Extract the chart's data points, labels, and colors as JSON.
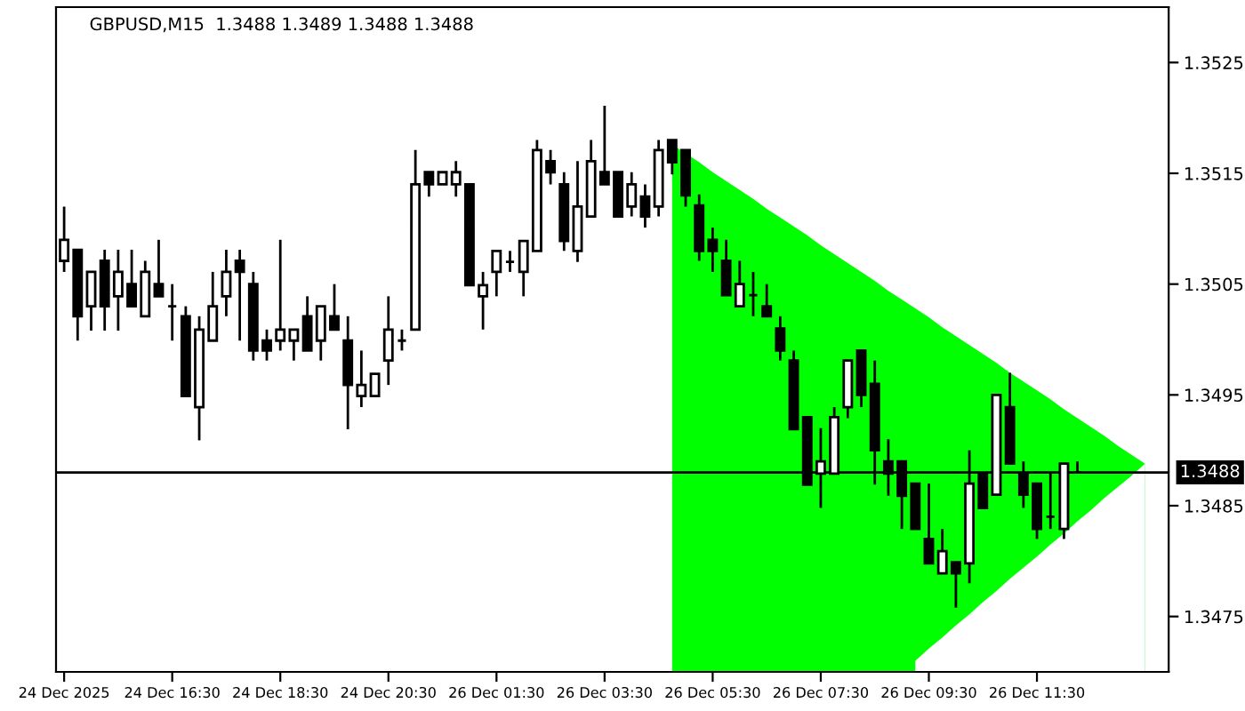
{
  "chart_data": {
    "type": "candlestick",
    "title": "GBPUSD,M15  1.3488 1.3489 1.3488 1.3488",
    "categories": [
      "24 Dec 2025",
      null,
      null,
      null,
      null,
      null,
      null,
      null,
      "24 Dec 16:30",
      null,
      null,
      null,
      null,
      null,
      null,
      null,
      "24 Dec 18:30",
      null,
      null,
      null,
      null,
      null,
      null,
      null,
      "24 Dec 20:30",
      null,
      null,
      null,
      null,
      null,
      null,
      null,
      "26 Dec 01:30",
      null,
      null,
      null,
      null,
      null,
      null,
      null,
      "26 Dec 03:30",
      null,
      null,
      null,
      null,
      null,
      null,
      null,
      "26 Dec 05:30",
      null,
      null,
      null,
      null,
      null,
      null,
      null,
      "26 Dec 07:30",
      null,
      null,
      null,
      null,
      null,
      null,
      null,
      "26 Dec 09:30",
      null,
      null,
      null,
      null,
      null,
      null,
      null,
      "26 Dec 11:30",
      null,
      null,
      null,
      null,
      null,
      null,
      null,
      null
    ],
    "ohlc": [
      [
        1.35071,
        1.3512,
        1.35061,
        1.3509
      ],
      [
        1.35081,
        1.35081,
        1.34999,
        1.35021
      ],
      [
        1.3503,
        1.35061,
        1.35008,
        1.35061
      ],
      [
        1.35071,
        1.35081,
        1.35008,
        1.3503
      ],
      [
        1.35039,
        1.35081,
        1.35008,
        1.35061
      ],
      [
        1.3505,
        1.35081,
        1.3503,
        1.3503
      ],
      [
        1.35021,
        1.35071,
        1.35021,
        1.35061
      ],
      [
        1.3505,
        1.3509,
        1.35039,
        1.35039
      ],
      [
        1.3503,
        1.3505,
        1.34999,
        1.3503
      ],
      [
        1.35021,
        1.3503,
        1.34949,
        1.34949
      ],
      [
        1.34939,
        1.35021,
        1.34909,
        1.35009
      ],
      [
        1.34999,
        1.35061,
        1.34999,
        1.3503
      ],
      [
        1.35039,
        1.35081,
        1.35021,
        1.35061
      ],
      [
        1.35071,
        1.35081,
        1.34999,
        1.35061
      ],
      [
        1.3505,
        1.35061,
        1.34981,
        1.3499
      ],
      [
        1.34999,
        1.35009,
        1.34981,
        1.3499
      ],
      [
        1.34999,
        1.3509,
        1.3499,
        1.35009
      ],
      [
        1.34999,
        1.35009,
        1.34981,
        1.35009
      ],
      [
        1.35021,
        1.35039,
        1.3499,
        1.3499
      ],
      [
        1.34999,
        1.3503,
        1.34981,
        1.3503
      ],
      [
        1.35021,
        1.3505,
        1.35009,
        1.35009
      ],
      [
        1.34999,
        1.35021,
        1.34919,
        1.34959
      ],
      [
        1.34949,
        1.3499,
        1.34939,
        1.34959
      ],
      [
        1.34949,
        1.34969,
        1.34949,
        1.34969
      ],
      [
        1.34981,
        1.35039,
        1.34959,
        1.35009
      ],
      [
        1.34999,
        1.35009,
        1.3499,
        1.34999
      ],
      [
        1.35009,
        1.35171,
        1.35009,
        1.3514
      ],
      [
        1.35151,
        1.35151,
        1.35129,
        1.3514
      ],
      [
        1.3514,
        1.35151,
        1.3514,
        1.35151
      ],
      [
        1.3514,
        1.35161,
        1.35129,
        1.35151
      ],
      [
        1.3514,
        1.3514,
        1.35049,
        1.35049
      ],
      [
        1.35039,
        1.35061,
        1.35009,
        1.35049
      ],
      [
        1.35061,
        1.3508,
        1.35039,
        1.3508
      ],
      [
        1.3507,
        1.3508,
        1.35061,
        1.3507
      ],
      [
        1.35061,
        1.35089,
        1.35039,
        1.35089
      ],
      [
        1.3508,
        1.3518,
        1.3508,
        1.35171
      ],
      [
        1.35161,
        1.35171,
        1.3514,
        1.35151
      ],
      [
        1.3514,
        1.35151,
        1.3508,
        1.35089
      ],
      [
        1.3508,
        1.35161,
        1.3507,
        1.3512
      ],
      [
        1.35111,
        1.3518,
        1.35111,
        1.35161
      ],
      [
        1.35151,
        1.35211,
        1.3514,
        1.3514
      ],
      [
        1.35151,
        1.35151,
        1.35111,
        1.35111
      ],
      [
        1.3512,
        1.35151,
        1.35111,
        1.3514
      ],
      [
        1.35129,
        1.3514,
        1.35101,
        1.35111
      ],
      [
        1.3512,
        1.3518,
        1.35111,
        1.35171
      ],
      [
        1.3518,
        1.3518,
        1.35149,
        1.3516
      ],
      [
        1.35171,
        1.35171,
        1.3512,
        1.3513
      ],
      [
        1.35121,
        1.35131,
        1.35071,
        1.3508
      ],
      [
        1.3509,
        1.35101,
        1.35061,
        1.3508
      ],
      [
        1.35071,
        1.3509,
        1.3504,
        1.3504
      ],
      [
        1.3503,
        1.35071,
        1.3503,
        1.3505
      ],
      [
        1.3504,
        1.35061,
        1.35021,
        1.3504
      ],
      [
        1.3503,
        1.3505,
        1.35021,
        1.35021
      ],
      [
        1.3501,
        1.35021,
        1.34981,
        1.3499
      ],
      [
        1.34981,
        1.3499,
        1.34919,
        1.34919
      ],
      [
        1.3493,
        1.3493,
        1.34869,
        1.34869
      ],
      [
        1.34879,
        1.3492,
        1.34848,
        1.3489
      ],
      [
        1.34879,
        1.34939,
        1.34879,
        1.3493
      ],
      [
        1.34939,
        1.34981,
        1.34929,
        1.34981
      ],
      [
        1.3499,
        1.3499,
        1.34939,
        1.3495
      ],
      [
        1.3496,
        1.34981,
        1.34869,
        1.349
      ],
      [
        1.3489,
        1.3491,
        1.34859,
        1.34879
      ],
      [
        1.3489,
        1.3489,
        1.34829,
        1.34859
      ],
      [
        1.3487,
        1.3487,
        1.34829,
        1.34829
      ],
      [
        1.3482,
        1.3487,
        1.34798,
        1.34798
      ],
      [
        1.34789,
        1.34829,
        1.34789,
        1.34809
      ],
      [
        1.34799,
        1.34799,
        1.34758,
        1.34789
      ],
      [
        1.34798,
        1.349,
        1.3478,
        1.3487
      ],
      [
        1.34879,
        1.34879,
        1.34848,
        1.34848
      ],
      [
        1.3486,
        1.3495,
        1.3486,
        1.3495
      ],
      [
        1.34939,
        1.3497,
        1.34888,
        1.34888
      ],
      [
        1.34879,
        1.3489,
        1.34848,
        1.3486
      ],
      [
        1.3487,
        1.3487,
        1.3482,
        1.34829
      ],
      [
        1.3484,
        1.34879,
        1.34829,
        1.3484
      ],
      [
        1.34829,
        1.34888,
        1.3482,
        1.34888
      ],
      [
        1.3488,
        1.3489,
        1.3488,
        1.3488
      ],
      null,
      null,
      null,
      null,
      null
    ],
    "series": [
      {
        "type": "area",
        "color": "#ffffff",
        "values": [
          null,
          null,
          null,
          null,
          null,
          null,
          null,
          null,
          null,
          null,
          null,
          null,
          null,
          null,
          null,
          null,
          null,
          null,
          null,
          null,
          null,
          null,
          null,
          null,
          null,
          null,
          null,
          null,
          null,
          null,
          null,
          null,
          null,
          null,
          null,
          null,
          null,
          null,
          null,
          null,
          null,
          null,
          null,
          null,
          null,
          null,
          null,
          null,
          null,
          null,
          null,
          null,
          null,
          null,
          null,
          null,
          null,
          null,
          null,
          null,
          null,
          null,
          null,
          1.3471,
          1.34721,
          1.34731,
          1.34742,
          1.34752,
          1.34763,
          1.34773,
          1.34784,
          1.34794,
          1.34804,
          1.34815,
          1.34825,
          1.34836,
          1.34846,
          1.34857,
          1.34867,
          1.34877,
          1.34888
        ]
      },
      {
        "type": "area",
        "color": "#00ff00",
        "values": [
          null,
          null,
          null,
          null,
          null,
          null,
          null,
          null,
          null,
          null,
          null,
          null,
          null,
          null,
          null,
          null,
          null,
          null,
          null,
          null,
          null,
          null,
          null,
          null,
          null,
          null,
          null,
          null,
          null,
          null,
          null,
          null,
          null,
          null,
          null,
          null,
          null,
          null,
          null,
          null,
          null,
          null,
          null,
          null,
          null,
          1.35176,
          null,
          1.3516,
          1.35151,
          1.35143,
          1.35135,
          1.35127,
          1.35118,
          1.3511,
          1.35102,
          1.35094,
          1.35085,
          1.35077,
          1.35069,
          1.35061,
          1.35053,
          1.35044,
          1.35036,
          1.35028,
          1.3502,
          1.35011,
          1.35003,
          1.34995,
          1.34987,
          1.34979,
          1.3497,
          1.34962,
          1.34954,
          1.34946,
          1.34937,
          1.34929,
          1.34921,
          1.34913,
          1.34904,
          1.34896,
          1.34888
        ]
      }
    ],
    "ylim": [
      1.347,
      1.353
    ],
    "yticks": [
      1.3475,
      1.3485,
      1.3495,
      1.3505,
      1.3515,
      1.3525
    ],
    "ref_lines": [
      {
        "axis": "y",
        "value": 1.3488,
        "label": "1.3488",
        "color": "#000000"
      }
    ],
    "grid": false,
    "legend": false
  }
}
